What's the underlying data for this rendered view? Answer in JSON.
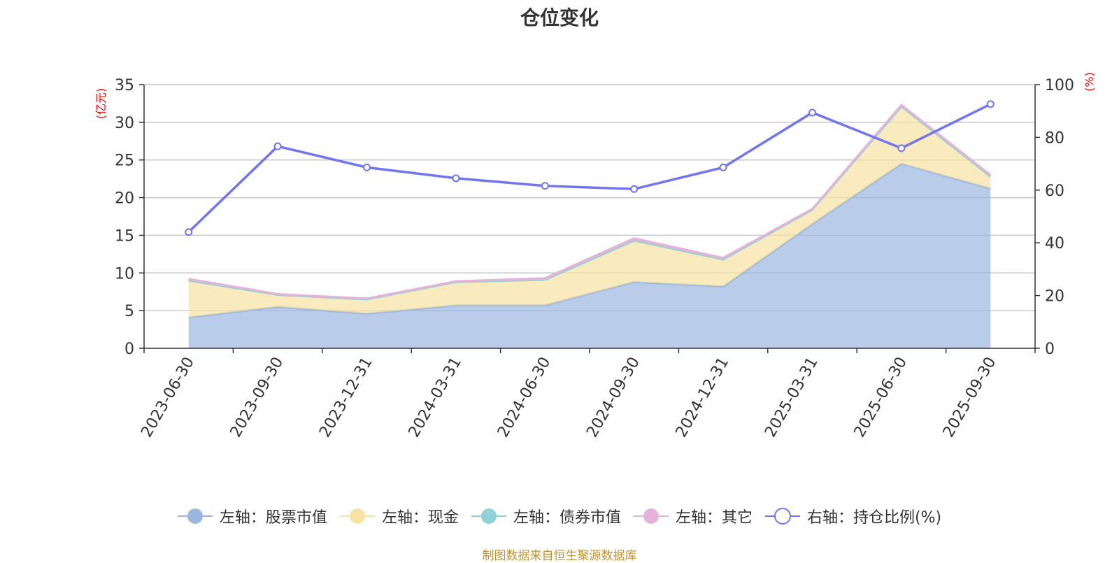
{
  "chart_data": {
    "type": "area",
    "title": "仓位变化",
    "categories": [
      "2023-06-30",
      "2023-09-30",
      "2023-12-31",
      "2024-03-31",
      "2024-06-30",
      "2024-09-30",
      "2024-12-31",
      "2025-03-31",
      "2025-06-30",
      "2025-09-30"
    ],
    "left_axis": {
      "unit": "(亿元)",
      "ylim": [
        0,
        35
      ],
      "ticks": [
        0,
        5,
        10,
        15,
        20,
        25,
        30,
        35
      ]
    },
    "right_axis": {
      "unit": "(%)",
      "ylim": [
        0,
        100
      ],
      "ticks": [
        0,
        20,
        40,
        60,
        80,
        100
      ]
    },
    "series": [
      {
        "name": "左轴：股票市值",
        "type": "stacked-area",
        "axis": "left",
        "color": "#9bb7e0",
        "values": [
          4.1,
          5.5,
          4.6,
          5.7,
          5.7,
          8.8,
          8.2,
          16.5,
          24.5,
          21.2
        ]
      },
      {
        "name": "左轴：现金",
        "type": "stacked-area",
        "axis": "left",
        "color": "#f7e3a1",
        "values": [
          4.9,
          1.6,
          1.9,
          3.1,
          3.4,
          5.5,
          3.6,
          1.9,
          7.6,
          1.6
        ]
      },
      {
        "name": "左轴：债券市值",
        "type": "stacked-area",
        "axis": "left",
        "color": "#8fd3d6",
        "values": [
          0,
          0,
          0,
          0,
          0,
          0,
          0,
          0,
          0,
          0
        ]
      },
      {
        "name": "左轴：其它",
        "type": "stacked-area",
        "axis": "left",
        "color": "#e5b3d9",
        "values": [
          0.2,
          0.1,
          0.1,
          0.1,
          0.2,
          0.3,
          0.2,
          0.1,
          0.2,
          0.2
        ]
      },
      {
        "name": "右轴：持仓比例(%)",
        "type": "line",
        "axis": "right",
        "color": "#7176f0",
        "values": [
          44.1,
          76.6,
          68.6,
          64.5,
          61.6,
          60.4,
          68.6,
          89.4,
          75.9,
          92.6
        ]
      }
    ],
    "grid": true,
    "legend_position": "bottom"
  },
  "footer": "制图数据来自恒生聚源数据库"
}
